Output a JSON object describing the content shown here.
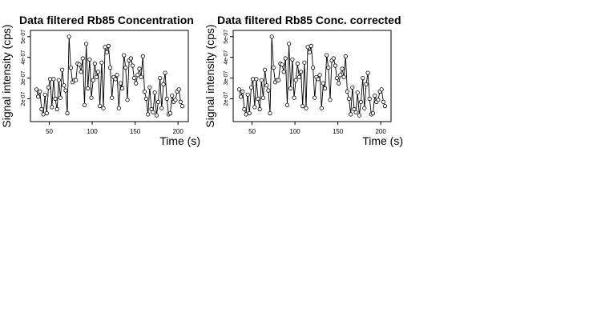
{
  "chart_data": [
    {
      "type": "line",
      "title": "Data filtered Rb85 Concentration",
      "xlabel": "Time (s)",
      "ylabel": "Signal intensity (cps)",
      "xlim": [
        28,
        212
      ],
      "ylim": [
        9e-08,
        5.3e-07
      ],
      "x_ticks": [
        50,
        100,
        150,
        200
      ],
      "x_tick_labels": [
        "50",
        "100",
        "150",
        "200"
      ],
      "y_ticks": [
        2e-07,
        3e-07,
        4e-07,
        5e-07
      ],
      "y_tick_labels": [
        "2e-07",
        "3e-07",
        "4e-07",
        "5e-07"
      ],
      "grid": false,
      "markers": "open-circles",
      "series": [
        {
          "x": [
            35,
            37,
            39,
            41,
            43,
            45,
            47,
            49,
            51,
            53,
            55,
            57,
            59,
            61,
            63,
            65,
            67,
            69,
            71,
            73,
            75,
            77,
            79,
            81,
            83,
            85,
            87,
            89,
            91,
            93,
            95,
            97,
            99,
            101,
            103,
            105,
            107,
            109,
            111,
            113,
            115,
            117,
            119,
            121,
            123,
            125,
            127,
            129,
            131,
            133,
            135,
            137,
            139,
            141,
            143,
            145,
            147,
            149,
            151,
            153,
            155,
            157,
            159,
            161,
            163,
            165,
            167,
            169,
            171,
            173,
            175,
            177,
            179,
            181,
            183,
            185,
            187,
            189,
            191,
            193,
            195,
            197,
            199,
            201,
            203,
            205
          ],
          "y": [
            2.45e-07,
            2.1e-07,
            2.35e-07,
            1.5e-07,
            1.25e-07,
            2.2e-07,
            1.3e-07,
            2.55e-07,
            2.95e-07,
            1.6e-07,
            2.95e-07,
            2e-07,
            1.5e-07,
            2.9e-07,
            2.05e-07,
            3.4e-07,
            2.65e-07,
            2.4e-07,
            1.3e-07,
            5e-07,
            3.5e-07,
            2.8e-07,
            2.9e-07,
            2.9e-07,
            3.7e-07,
            3.65e-07,
            3.3e-07,
            3.95e-07,
            1.7e-07,
            4.65e-07,
            2.5e-07,
            3.9e-07,
            2.05e-07,
            2.9e-07,
            3.7e-07,
            3.05e-07,
            3.3e-07,
            1.65e-07,
            3.75e-07,
            1.55e-07,
            4.5e-07,
            4.25e-07,
            4.55e-07,
            3.5e-07,
            2.05e-07,
            3.05e-07,
            2.95e-07,
            3.15e-07,
            1.55e-07,
            2.75e-07,
            2.5e-07,
            4.1e-07,
            3.5e-07,
            1.95e-07,
            3.85e-07,
            3.95e-07,
            3.6e-07,
            3e-07,
            2.75e-07,
            3.15e-07,
            3.45e-07,
            3.05e-07,
            4.05e-07,
            2.35e-07,
            2e-07,
            1.25e-07,
            2.55e-07,
            1.5e-07,
            1.35e-07,
            2.3e-07,
            1.2e-07,
            1.85e-07,
            3e-07,
            1.55e-07,
            2.7e-07,
            3.25e-07,
            2e-07,
            1.25e-07,
            1.3e-07,
            2.15e-07,
            1.85e-07,
            1.95e-07,
            2.35e-07,
            2.45e-07,
            1.85e-07,
            1.65e-07
          ]
        }
      ]
    },
    {
      "type": "line",
      "title": "Data filtered Rb85 Conc. corrected",
      "xlabel": "Time (s)",
      "ylabel": "Signal intensity (cps)",
      "xlim": [
        28,
        212
      ],
      "ylim": [
        9e-08,
        5.3e-07
      ],
      "x_ticks": [
        50,
        100,
        150,
        200
      ],
      "x_tick_labels": [
        "50",
        "100",
        "150",
        "200"
      ],
      "y_ticks": [
        2e-07,
        3e-07,
        4e-07,
        5e-07
      ],
      "y_tick_labels": [
        "2e-07",
        "3e-07",
        "4e-07",
        "5e-07"
      ],
      "grid": false,
      "markers": "open-circles",
      "series": [
        {
          "x": [
            35,
            37,
            39,
            41,
            43,
            45,
            47,
            49,
            51,
            53,
            55,
            57,
            59,
            61,
            63,
            65,
            67,
            69,
            71,
            73,
            75,
            77,
            79,
            81,
            83,
            85,
            87,
            89,
            91,
            93,
            95,
            97,
            99,
            101,
            103,
            105,
            107,
            109,
            111,
            113,
            115,
            117,
            119,
            121,
            123,
            125,
            127,
            129,
            131,
            133,
            135,
            137,
            139,
            141,
            143,
            145,
            147,
            149,
            151,
            153,
            155,
            157,
            159,
            161,
            163,
            165,
            167,
            169,
            171,
            173,
            175,
            177,
            179,
            181,
            183,
            185,
            187,
            189,
            191,
            193,
            195,
            197,
            199,
            201,
            203,
            205
          ],
          "y": [
            2.45e-07,
            2.1e-07,
            2.35e-07,
            1.5e-07,
            1.25e-07,
            2.2e-07,
            1.3e-07,
            2.55e-07,
            2.95e-07,
            1.6e-07,
            2.95e-07,
            2e-07,
            1.5e-07,
            2.9e-07,
            2.05e-07,
            3.4e-07,
            2.65e-07,
            2.4e-07,
            1.3e-07,
            5e-07,
            3.5e-07,
            2.8e-07,
            2.9e-07,
            2.9e-07,
            3.7e-07,
            3.65e-07,
            3.3e-07,
            3.95e-07,
            1.7e-07,
            4.65e-07,
            2.5e-07,
            3.9e-07,
            2.05e-07,
            2.9e-07,
            3.7e-07,
            3.05e-07,
            3.3e-07,
            1.65e-07,
            3.75e-07,
            1.55e-07,
            4.5e-07,
            4.25e-07,
            4.55e-07,
            3.5e-07,
            2.05e-07,
            3.05e-07,
            2.95e-07,
            3.15e-07,
            1.55e-07,
            2.75e-07,
            2.5e-07,
            4.1e-07,
            3.5e-07,
            1.95e-07,
            3.85e-07,
            3.95e-07,
            3.6e-07,
            3e-07,
            2.75e-07,
            3.15e-07,
            3.45e-07,
            3.05e-07,
            4.05e-07,
            2.35e-07,
            2e-07,
            1.25e-07,
            2.55e-07,
            1.5e-07,
            1.35e-07,
            2.3e-07,
            1.2e-07,
            1.85e-07,
            3e-07,
            1.55e-07,
            2.7e-07,
            3.25e-07,
            2e-07,
            1.25e-07,
            1.3e-07,
            2.15e-07,
            1.85e-07,
            1.95e-07,
            2.35e-07,
            2.45e-07,
            1.85e-07,
            1.65e-07
          ]
        }
      ]
    }
  ]
}
